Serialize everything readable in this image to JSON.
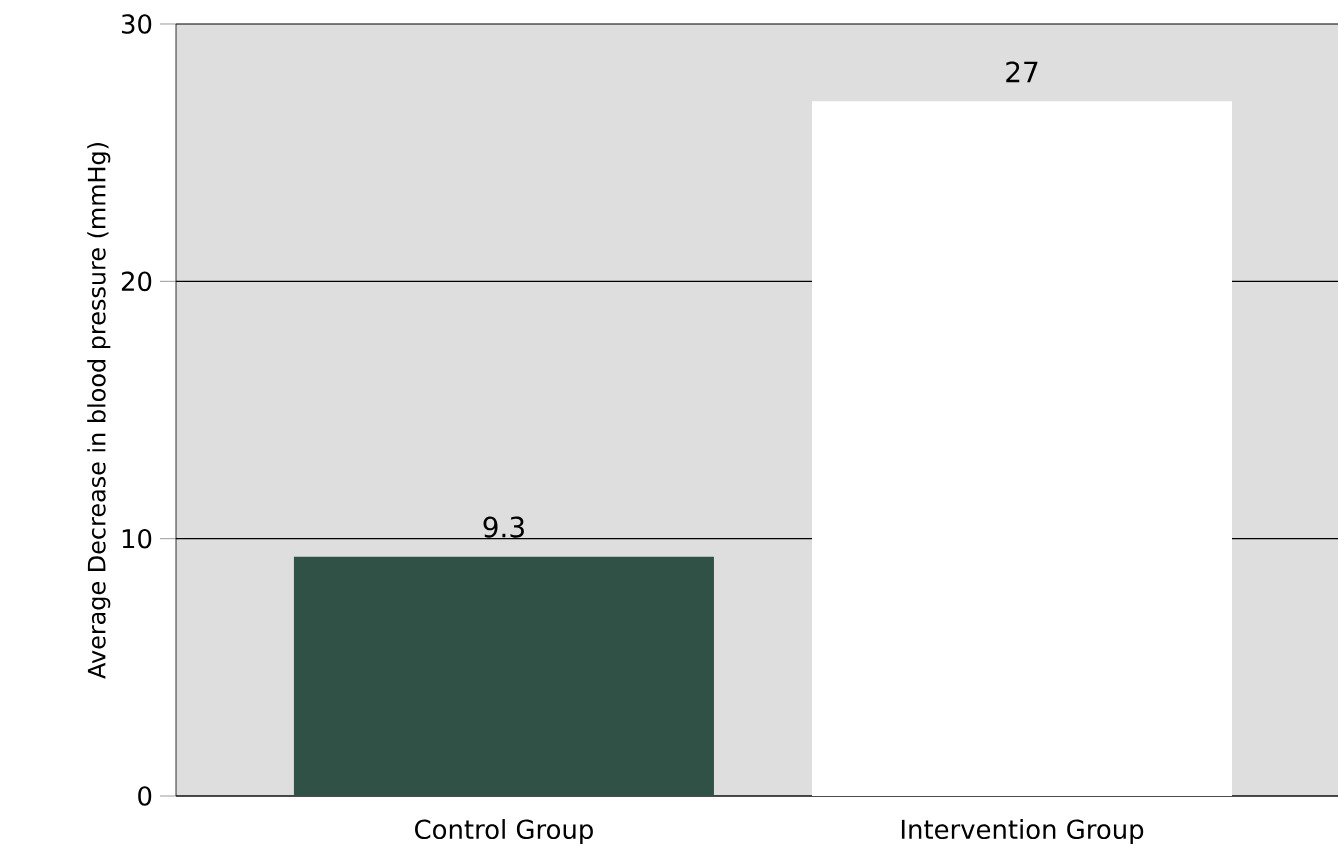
{
  "chart_data": {
    "type": "bar",
    "ylabel": "Average Decrease in blood pressure (mmHg)",
    "categories": [
      "Control Group",
      "Intervention Group"
    ],
    "values": [
      9.3,
      27
    ],
    "colors": [
      "#2f5146",
      "#ffffff"
    ],
    "ylim": [
      0,
      30
    ],
    "yticks": [
      0,
      10,
      20,
      30
    ],
    "grid": "y",
    "data_labels": true
  }
}
